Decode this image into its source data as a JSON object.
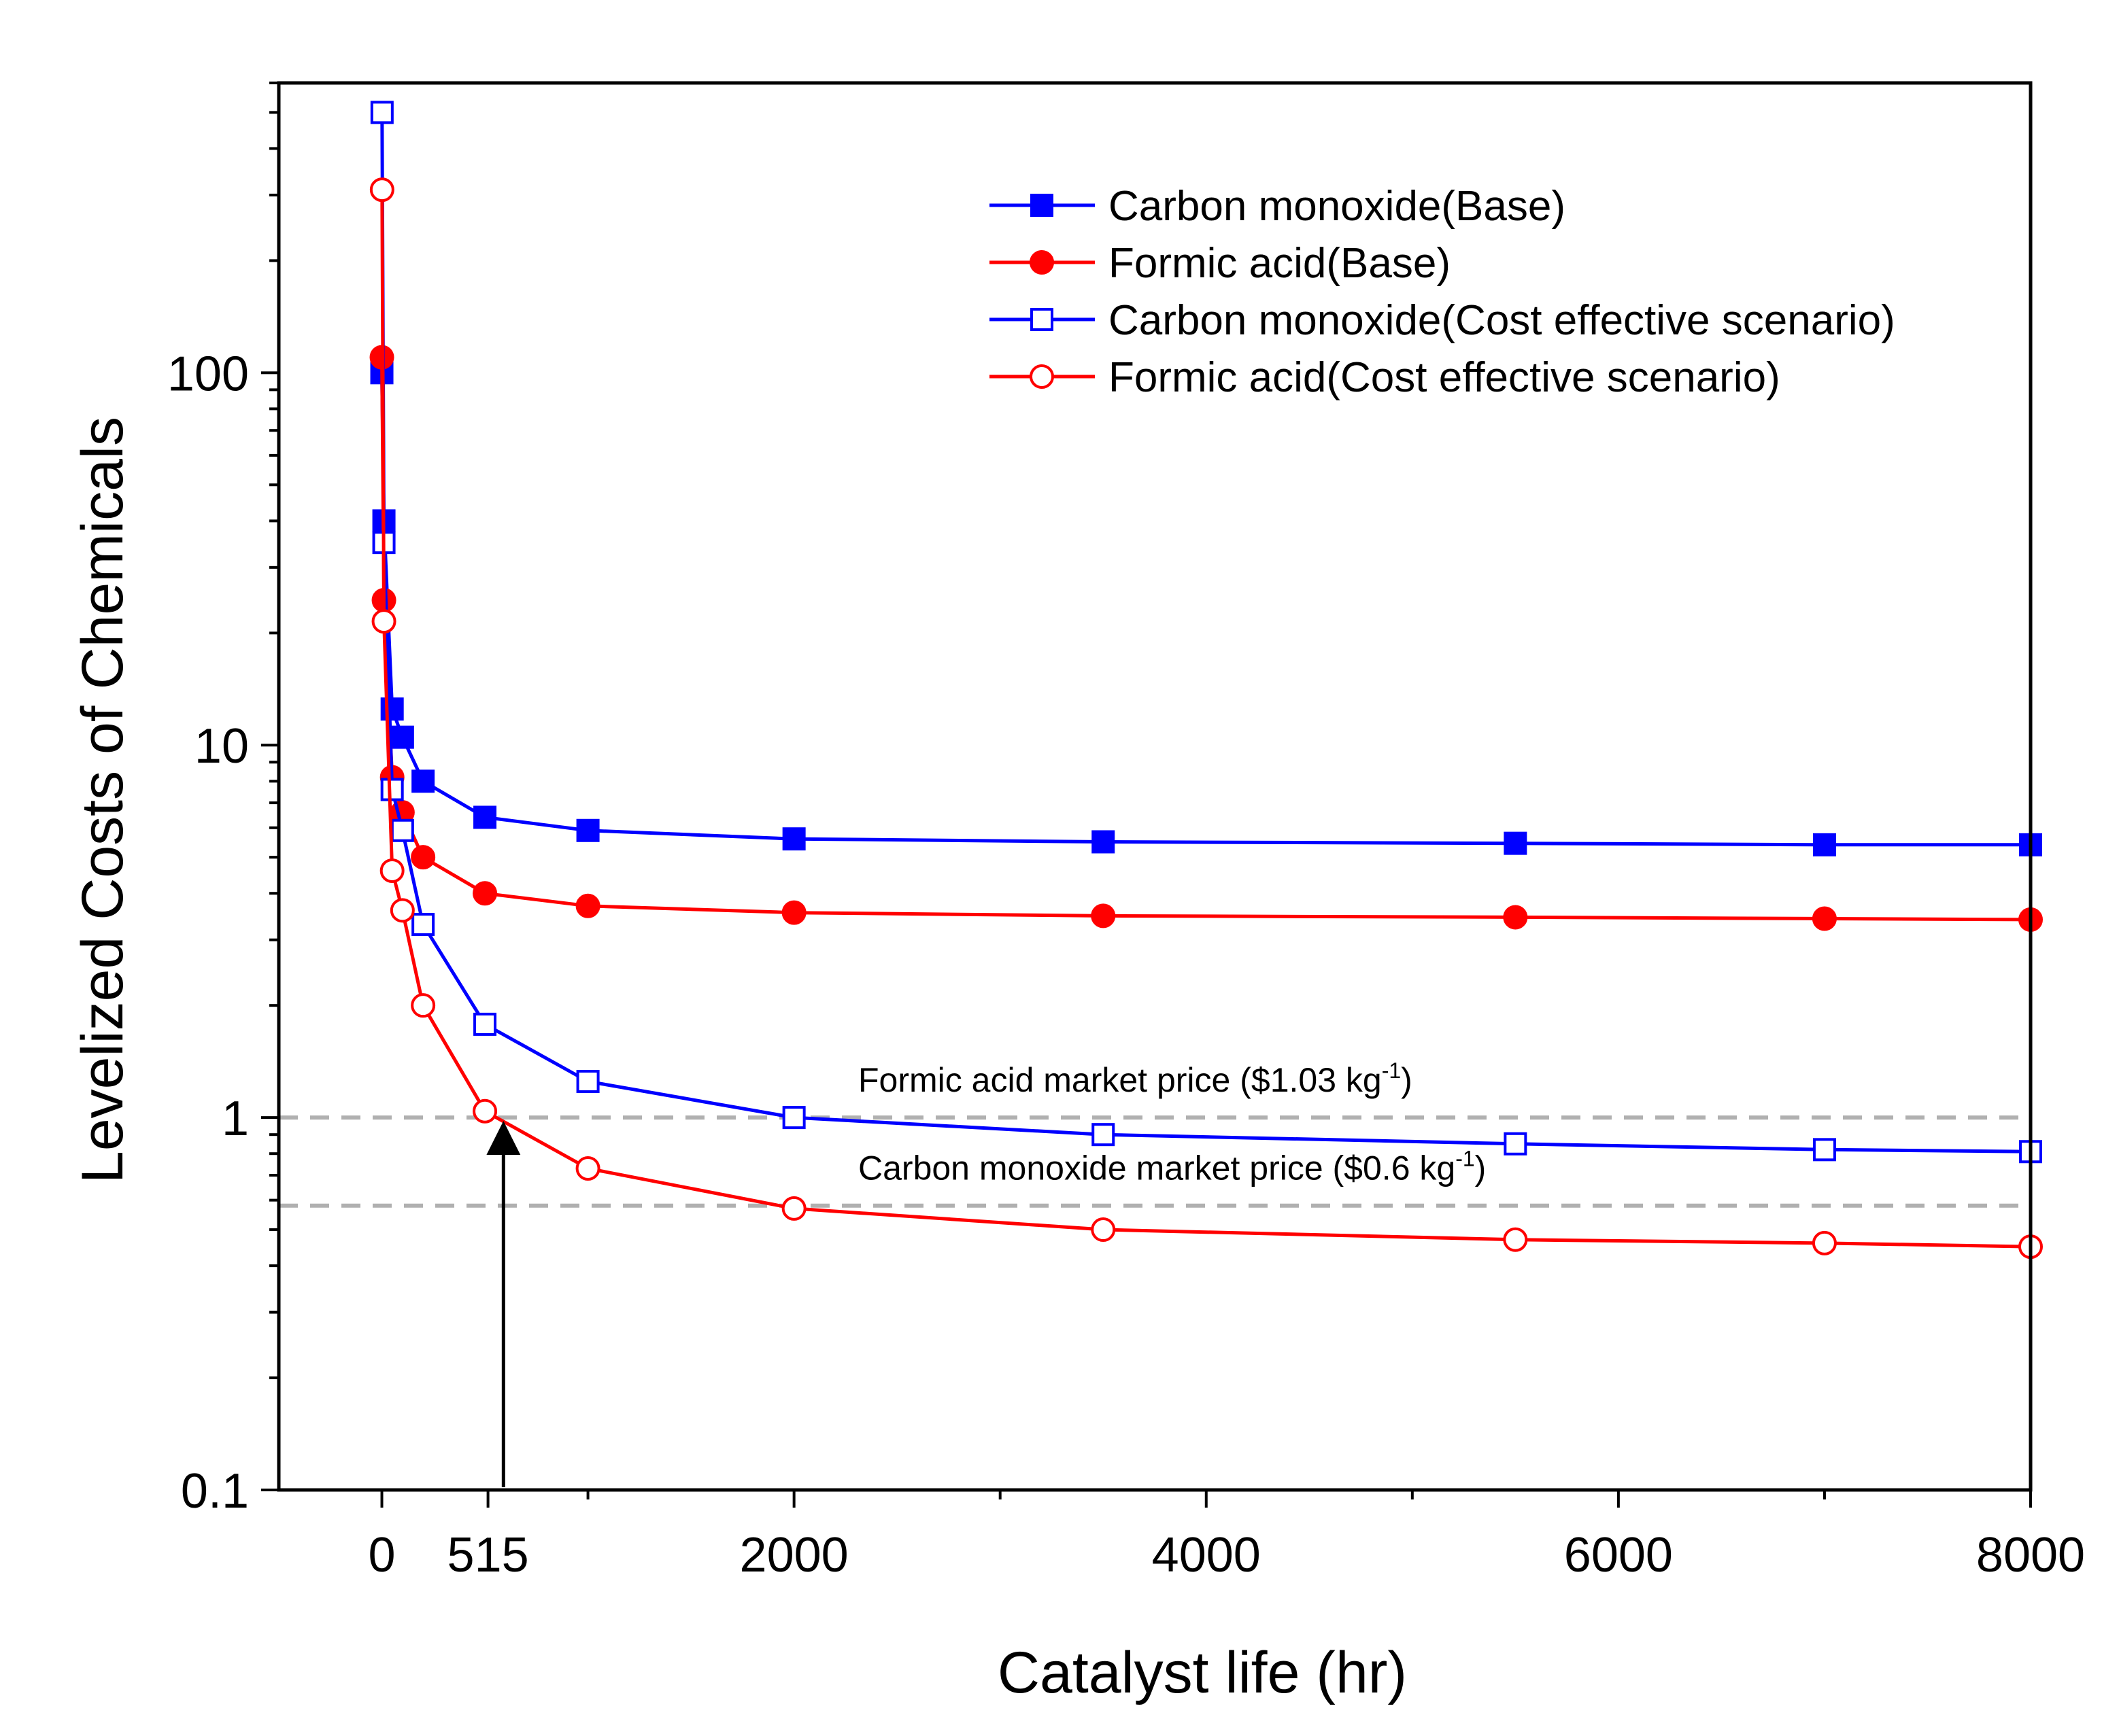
{
  "chart_data": {
    "type": "line",
    "title": "",
    "xlabel": "Catalyst life (hr)",
    "ylabel": "Levelized Costs of Chemicals",
    "yscale": "log",
    "xlim": [
      -500,
      8000
    ],
    "ylim": [
      0.1,
      600
    ],
    "xticks": [
      0,
      515,
      2000,
      4000,
      6000,
      8000
    ],
    "xtick_labels": [
      "0",
      "515",
      "2000",
      "4000",
      "6000",
      "8000"
    ],
    "xminor_ticks": [
      1000,
      3000,
      5000,
      7000
    ],
    "yticks": [
      0.1,
      1,
      10,
      100
    ],
    "ytick_labels": [
      "0.1",
      "1",
      "10",
      "100"
    ],
    "legend_position": "top-right",
    "colors": {
      "blue": "#0000FF",
      "red": "#FF0000",
      "ref": "#B0B0B0",
      "axis": "#000000"
    },
    "series": [
      {
        "name": "Carbon monoxide(Base)",
        "color": "#0000FF",
        "marker": "square",
        "filled": true,
        "x": [
          0,
          10,
          50,
          100,
          200,
          500,
          1000,
          2000,
          3500,
          5500,
          7000,
          8000
        ],
        "y": [
          100,
          40,
          12.5,
          10.5,
          8,
          6.4,
          5.9,
          5.6,
          5.5,
          5.45,
          5.4,
          5.4
        ]
      },
      {
        "name": "Formic acid(Base)",
        "color": "#FF0000",
        "marker": "circle",
        "filled": true,
        "x": [
          0,
          10,
          50,
          100,
          200,
          500,
          1000,
          2000,
          3500,
          5500,
          7000,
          8000
        ],
        "y": [
          110,
          24.5,
          8.2,
          6.6,
          5.0,
          4.0,
          3.7,
          3.55,
          3.48,
          3.45,
          3.42,
          3.4
        ]
      },
      {
        "name": "Carbon monoxide(Cost effective scenario)",
        "color": "#0000FF",
        "marker": "square",
        "filled": false,
        "x": [
          1,
          10,
          50,
          100,
          200,
          500,
          1000,
          2000,
          3500,
          5500,
          7000,
          8000
        ],
        "y": [
          500,
          35,
          7.6,
          5.9,
          3.3,
          1.78,
          1.25,
          1.0,
          0.9,
          0.85,
          0.82,
          0.81
        ]
      },
      {
        "name": "Formic acid(Cost effective scenario)",
        "color": "#FF0000",
        "marker": "circle",
        "filled": false,
        "x": [
          1,
          10,
          50,
          100,
          200,
          500,
          1000,
          2000,
          3500,
          5500,
          7000,
          8000
        ],
        "y": [
          310,
          21.5,
          4.6,
          3.6,
          2.0,
          1.04,
          0.73,
          0.57,
          0.5,
          0.47,
          0.46,
          0.45
        ]
      }
    ],
    "reference_lines": [
      {
        "y": 1.0,
        "label": "Formic acid market price ($1.03 kg",
        "sup": "-1",
        "suffix": ")"
      },
      {
        "y": 0.58,
        "label": "Carbon monoxide market price ($0.6 kg",
        "sup": "-1",
        "suffix": ")"
      }
    ],
    "annotations": [
      {
        "type": "arrow",
        "x": 590,
        "y_from": 0.1,
        "y_to": 1.0,
        "text": "515"
      }
    ]
  }
}
